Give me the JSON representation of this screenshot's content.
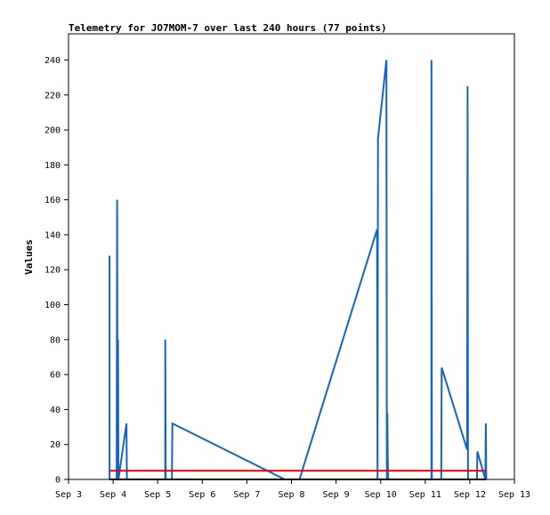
{
  "chart_data": {
    "type": "line",
    "title": "Telemetry for JO7MOM-7 over last 240 hours (77 points)",
    "xlabel": "",
    "ylabel": "Values",
    "xlim": [
      3,
      13
    ],
    "ylim": [
      0,
      255
    ],
    "x_ticks": [
      {
        "value": 3,
        "label": "Sep 3"
      },
      {
        "value": 4,
        "label": "Sep 4"
      },
      {
        "value": 5,
        "label": "Sep 5"
      },
      {
        "value": 6,
        "label": "Sep 6"
      },
      {
        "value": 7,
        "label": "Sep 7"
      },
      {
        "value": 8,
        "label": "Sep 8"
      },
      {
        "value": 9,
        "label": "Sep 9"
      },
      {
        "value": 10,
        "label": "Sep 10"
      },
      {
        "value": 11,
        "label": "Sep 11"
      },
      {
        "value": 12,
        "label": "Sep 12"
      },
      {
        "value": 13,
        "label": "Sep 13"
      }
    ],
    "y_ticks": [
      0,
      20,
      40,
      60,
      80,
      100,
      120,
      140,
      160,
      180,
      200,
      220,
      240
    ],
    "grid": false,
    "legend": "none",
    "series": [
      {
        "color": "#1565c0",
        "points": [
          [
            3.92,
            0
          ],
          [
            3.92,
            128
          ],
          [
            3.92,
            0
          ],
          [
            4.08,
            0
          ],
          [
            4.09,
            160
          ],
          [
            4.1,
            0
          ],
          [
            4.11,
            80
          ],
          [
            4.12,
            0
          ],
          [
            4.3,
            32
          ],
          [
            4.31,
            0
          ],
          [
            5.17,
            0
          ],
          [
            5.17,
            80
          ],
          [
            5.18,
            0
          ],
          [
            5.32,
            0
          ],
          [
            5.33,
            32
          ],
          [
            7.85,
            0
          ],
          [
            8.18,
            0
          ],
          [
            9.92,
            143
          ],
          [
            9.93,
            0
          ],
          [
            9.94,
            195
          ],
          [
            10.13,
            240
          ],
          [
            10.14,
            0
          ],
          [
            10.15,
            38
          ],
          [
            10.16,
            12
          ],
          [
            10.17,
            0
          ],
          [
            11.14,
            0
          ],
          [
            11.14,
            240
          ],
          [
            11.15,
            0
          ],
          [
            11.36,
            0
          ],
          [
            11.37,
            64
          ],
          [
            11.94,
            17
          ],
          [
            11.95,
            225
          ],
          [
            11.96,
            0
          ],
          [
            12.16,
            0
          ],
          [
            12.17,
            16
          ],
          [
            12.35,
            0
          ],
          [
            12.36,
            32
          ],
          [
            12.37,
            0
          ]
        ]
      },
      {
        "color": "#000000",
        "points": [
          [
            3.92,
            0
          ],
          [
            12.37,
            0
          ]
        ]
      },
      {
        "color": "#e00000",
        "points": [
          [
            3.92,
            5
          ],
          [
            12.37,
            5
          ]
        ]
      }
    ]
  }
}
